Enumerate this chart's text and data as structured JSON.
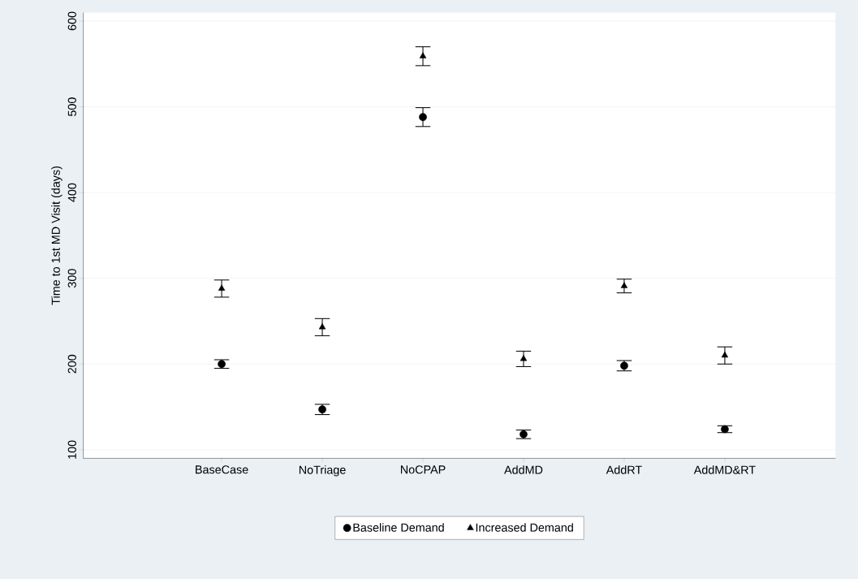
{
  "chart_data": {
    "type": "scatter",
    "ylabel": "Time to 1st MD Visit (days)",
    "categories": [
      "BaseCase",
      "NoTriage",
      "NoCPAP",
      "AddMD",
      "AddRT",
      "AddMD&RT"
    ],
    "series": [
      {
        "name": "Baseline Demand",
        "color": "#000000",
        "marker": "circle",
        "values": [
          200,
          147,
          488,
          118,
          198,
          124
        ],
        "errors": [
          5,
          6,
          11,
          5,
          6,
          4
        ]
      },
      {
        "name": "Increased Demand",
        "color": "#000000",
        "marker": "triangle",
        "values": [
          288,
          243,
          559,
          206,
          291,
          210
        ],
        "errors": [
          10,
          10,
          11,
          9,
          8,
          10
        ]
      }
    ],
    "ylim": [
      90,
      610
    ],
    "yticks": [
      100,
      200,
      300,
      400,
      500,
      600
    ],
    "grid": "y",
    "legend": "bottom"
  }
}
